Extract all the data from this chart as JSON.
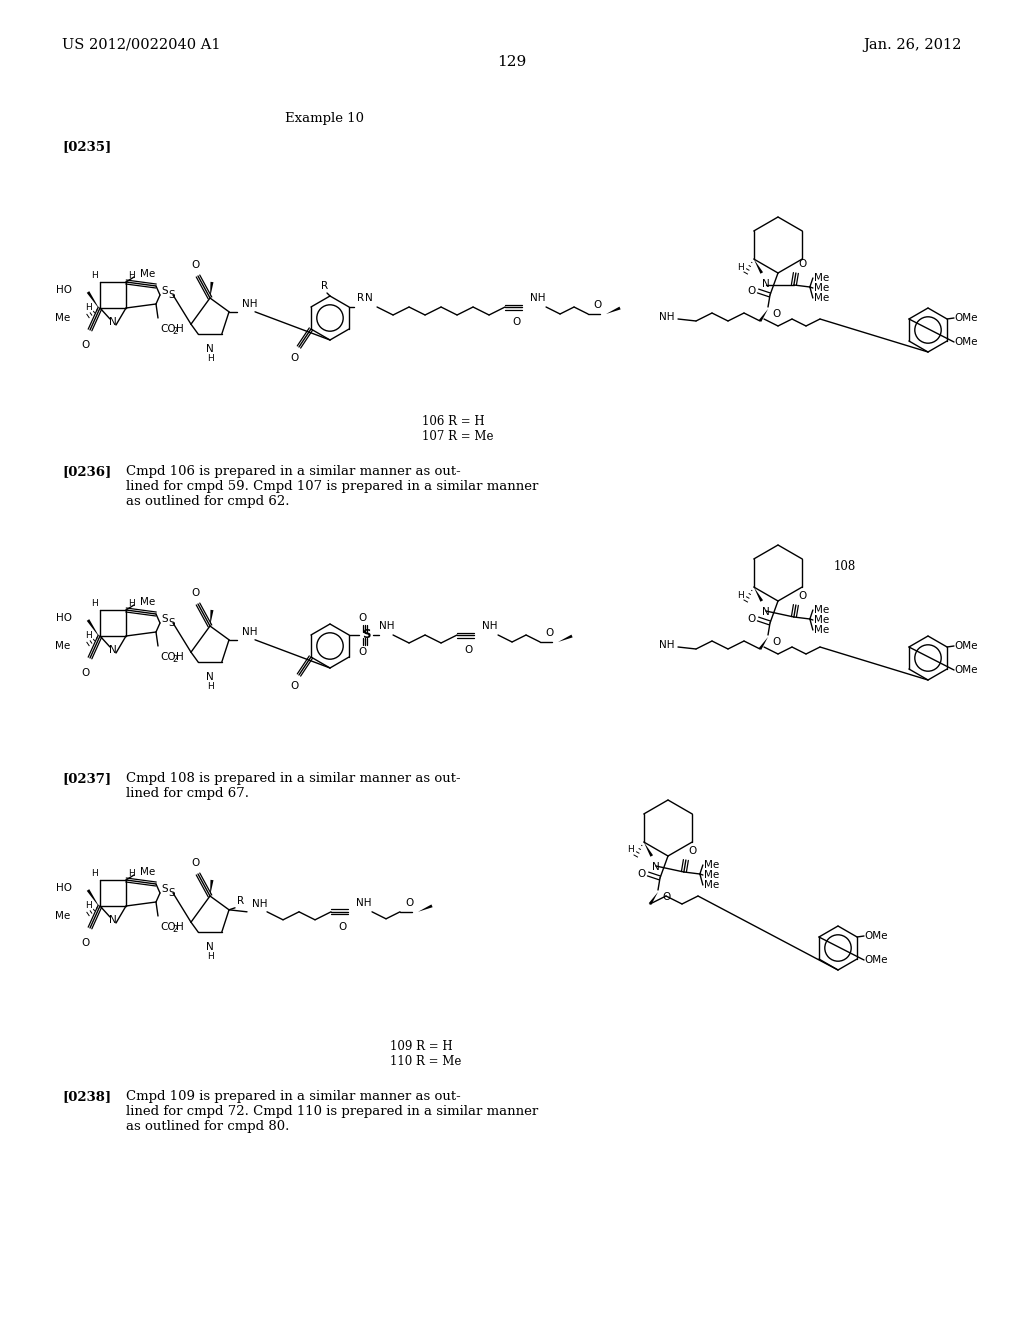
{
  "background_color": "#ffffff",
  "page_number": "129",
  "header_left": "US 2012/0022040 A1",
  "header_right": "Jan. 26, 2012",
  "example_label": "Example 10",
  "para_label_1": "[0235]",
  "para_label_2": "[0236]",
  "para_label_3": "[0237]",
  "para_label_4": "[0238]",
  "cmpd_lbl_1a": "106 R = H",
  "cmpd_lbl_1b": "107 R = Me",
  "cmpd_lbl_2": "108",
  "cmpd_lbl_3a": "109 R = H",
  "cmpd_lbl_3b": "110 R = Me",
  "text236_1": "Cmpd 106 is prepared in a similar manner as out-",
  "text236_2": "lined for cmpd 59. Cmpd 107 is prepared in a similar manner",
  "text236_3": "as outlined for cmpd 62.",
  "text237_1": "Cmpd 108 is prepared in a similar manner as out-",
  "text237_2": "lined for cmpd 67.",
  "text238_1": "Cmpd 109 is prepared in a similar manner as out-",
  "text238_2": "lined for cmpd 72. Cmpd 110 is prepared in a similar manner",
  "text238_3": "as outlined for cmpd 80.",
  "fs_header": 10.5,
  "fs_body": 9.5,
  "fs_chem": 7.5,
  "fs_chem_sm": 6.5,
  "fs_page": 11
}
